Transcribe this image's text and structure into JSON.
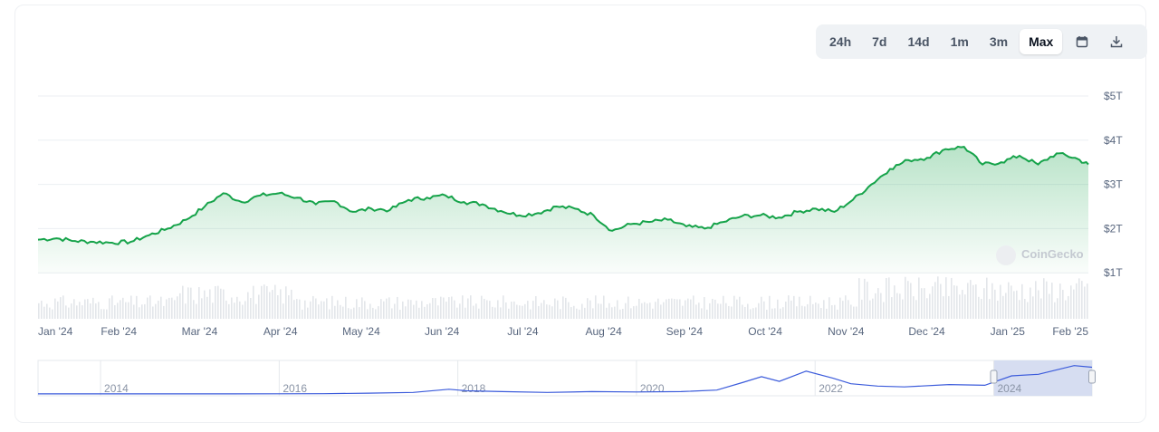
{
  "range_selector": {
    "buttons": [
      {
        "label": "24h",
        "active": false
      },
      {
        "label": "7d",
        "active": false
      },
      {
        "label": "14d",
        "active": false
      },
      {
        "label": "1m",
        "active": false
      },
      {
        "label": "3m",
        "active": false
      },
      {
        "label": "Max",
        "active": true
      }
    ],
    "calendar_icon": "calendar-icon",
    "download_icon": "download-icon"
  },
  "watermark": "CoinGecko",
  "colors": {
    "line": "#16a34a",
    "area_top": "#bfe9c9",
    "navigator_line": "#3b5bdb",
    "navigator_window": "#cfd7ee",
    "grid": "#eceff3"
  },
  "chart_data": {
    "type": "area",
    "y_unit": "T USD",
    "ylim": [
      0,
      5
    ],
    "y_ticks": [
      1,
      2,
      3,
      4,
      5
    ],
    "y_tick_labels": [
      "$1T",
      "$2T",
      "$3T",
      "$4T",
      "$5T"
    ],
    "x_tick_labels": [
      "Jan '24",
      "Feb '24",
      "Mar '24",
      "Apr '24",
      "May '24",
      "Jun '24",
      "Jul '24",
      "Aug '24",
      "Sep '24",
      "Oct '24",
      "Nov '24",
      "Dec '24",
      "Jan '25",
      "Feb '25"
    ],
    "grid": true,
    "series": [
      {
        "x": [
          "2024-01-01",
          "2024-01-08",
          "2024-01-15",
          "2024-01-22",
          "2024-01-29",
          "2024-02-05",
          "2024-02-12",
          "2024-02-19",
          "2024-02-26",
          "2024-03-04",
          "2024-03-11",
          "2024-03-18",
          "2024-03-25",
          "2024-04-01",
          "2024-04-08",
          "2024-04-15",
          "2024-04-22",
          "2024-04-29",
          "2024-05-06",
          "2024-05-13",
          "2024-05-20",
          "2024-05-27",
          "2024-06-03",
          "2024-06-10",
          "2024-06-17",
          "2024-06-24",
          "2024-07-01",
          "2024-07-08",
          "2024-07-15",
          "2024-07-22",
          "2024-07-29",
          "2024-08-05",
          "2024-08-12",
          "2024-08-19",
          "2024-08-26",
          "2024-09-02",
          "2024-09-09",
          "2024-09-16",
          "2024-09-23",
          "2024-09-30",
          "2024-10-07",
          "2024-10-14",
          "2024-10-21",
          "2024-10-28",
          "2024-11-04",
          "2024-11-11",
          "2024-11-18",
          "2024-11-25",
          "2024-12-02",
          "2024-12-09",
          "2024-12-16",
          "2024-12-23",
          "2024-12-30",
          "2025-01-06",
          "2025-01-13",
          "2025-01-20",
          "2025-01-27",
          "2025-02-01"
        ],
        "values": [
          1.75,
          1.78,
          1.72,
          1.7,
          1.68,
          1.7,
          1.85,
          2.0,
          2.2,
          2.5,
          2.8,
          2.6,
          2.75,
          2.8,
          2.7,
          2.55,
          2.62,
          2.38,
          2.45,
          2.42,
          2.65,
          2.7,
          2.75,
          2.6,
          2.55,
          2.4,
          2.3,
          2.35,
          2.5,
          2.45,
          2.3,
          1.95,
          2.1,
          2.15,
          2.2,
          2.05,
          2.0,
          2.15,
          2.28,
          2.3,
          2.25,
          2.38,
          2.45,
          2.38,
          2.65,
          3.0,
          3.35,
          3.55,
          3.6,
          3.8,
          3.85,
          3.45,
          3.5,
          3.65,
          3.45,
          3.7,
          3.6,
          3.45
        ]
      }
    ],
    "navigator": {
      "x_tick_labels": [
        "2014",
        "2016",
        "2018",
        "2020",
        "2022",
        "2024"
      ],
      "years": [
        2013.3,
        2014,
        2015,
        2016,
        2016.5,
        2017,
        2017.5,
        2017.9,
        2018.1,
        2018.5,
        2019,
        2019.5,
        2020,
        2020.5,
        2020.9,
        2021.2,
        2021.4,
        2021.6,
        2021.9,
        2022.2,
        2022.4,
        2022.7,
        2023,
        2023.5,
        2023.9,
        2024.2,
        2024.5,
        2024.9,
        2025.1
      ],
      "values": [
        0.01,
        0.01,
        0.01,
        0.02,
        0.03,
        0.1,
        0.2,
        0.6,
        0.4,
        0.3,
        0.2,
        0.3,
        0.25,
        0.3,
        0.5,
        1.5,
        2.2,
        1.6,
        2.9,
        2.0,
        1.3,
        1.0,
        0.9,
        1.2,
        1.1,
        2.3,
        2.5,
        3.6,
        3.4
      ]
    }
  }
}
